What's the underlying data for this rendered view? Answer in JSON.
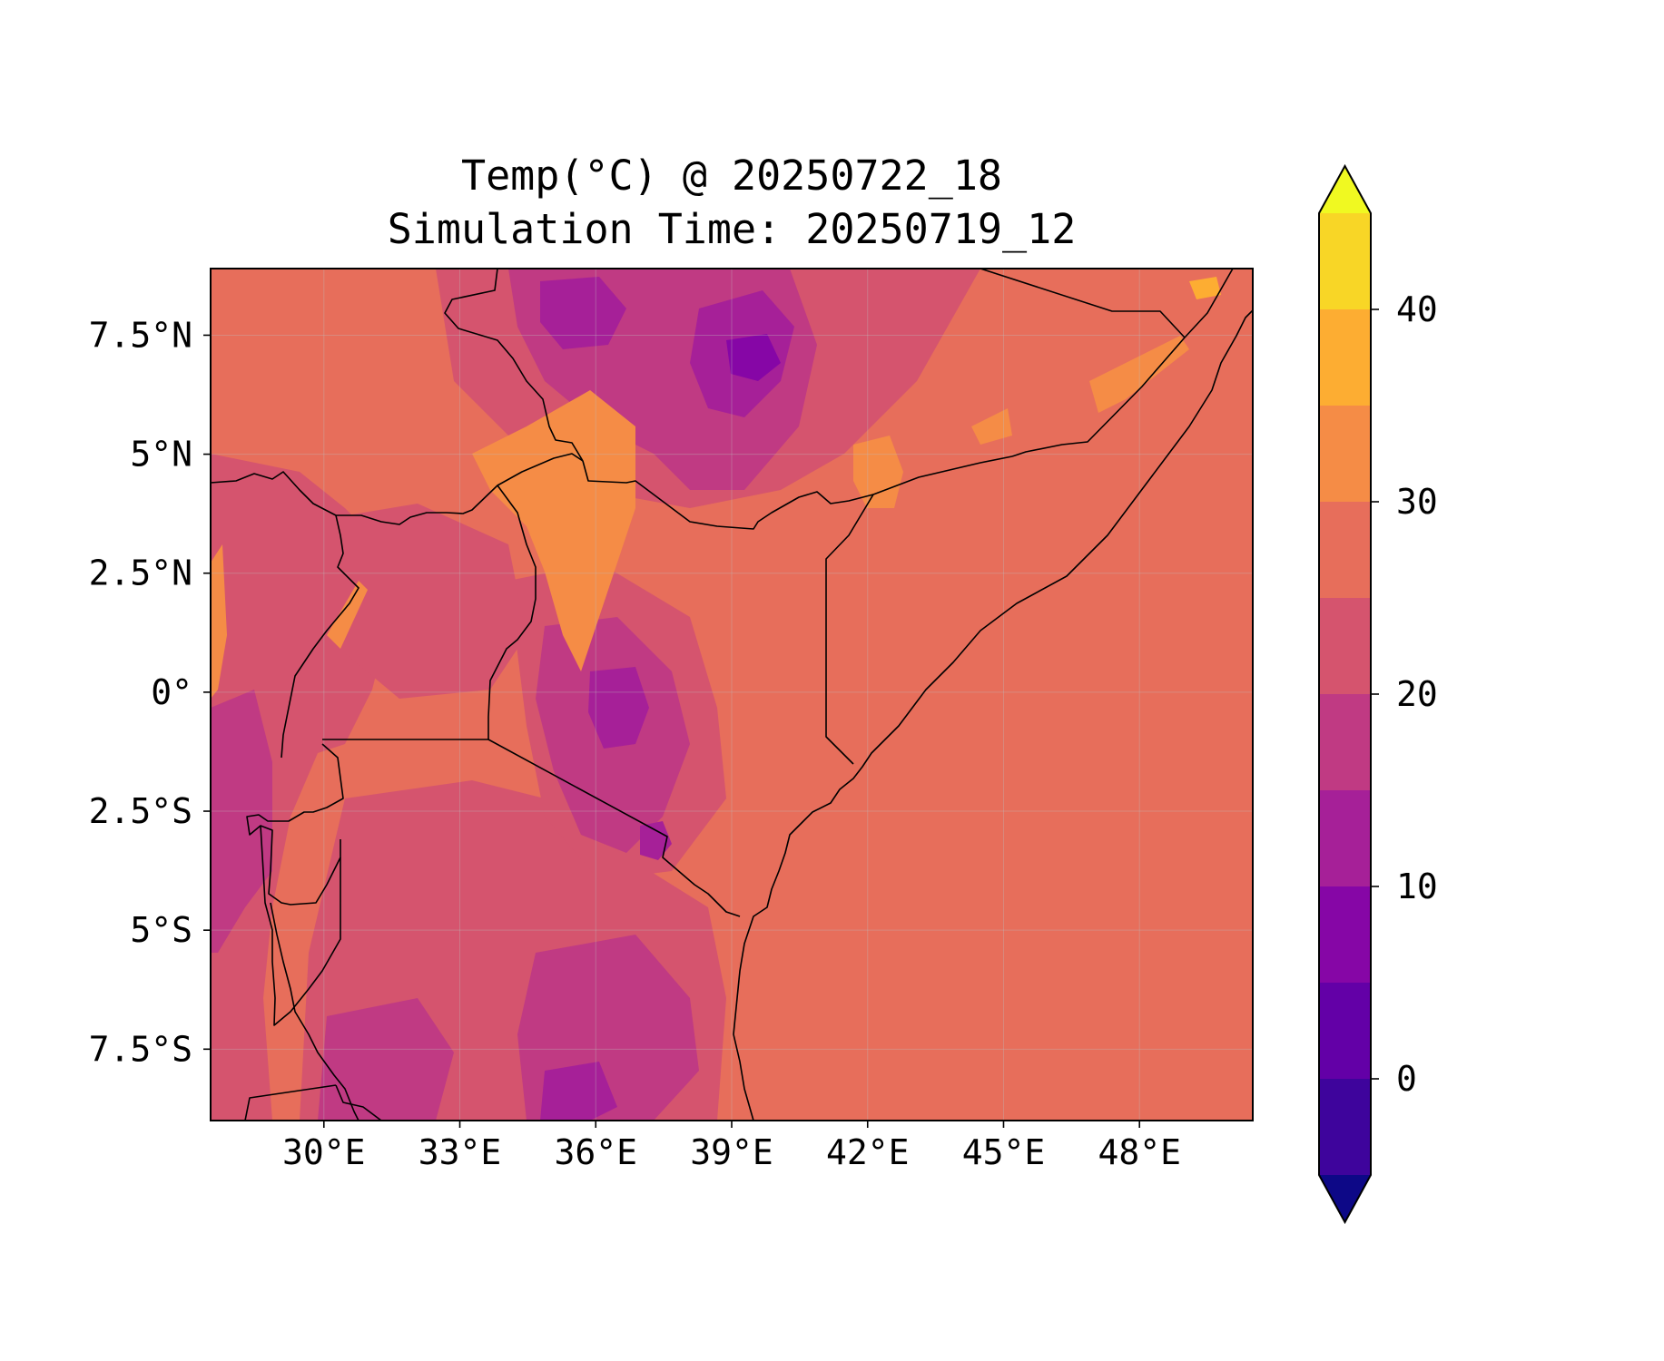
{
  "title": {
    "line1": "Temp(°C) @ 20250722_18",
    "line2": "Simulation Time: 20250719_12"
  },
  "axes": {
    "x_ticks": [
      "30°E",
      "33°E",
      "36°E",
      "39°E",
      "42°E",
      "45°E",
      "48°E"
    ],
    "y_ticks": [
      "7.5°N",
      "5°N",
      "2.5°N",
      "0°",
      "2.5°S",
      "5°S",
      "7.5°S"
    ]
  },
  "colorbar": {
    "tick_labels": [
      "0",
      "10",
      "20",
      "30",
      "40"
    ],
    "levels": [
      -5,
      0,
      5,
      10,
      15,
      20,
      25,
      30,
      35,
      40,
      45
    ],
    "extend": "both",
    "colormap": "plasma",
    "colors": [
      "#0d0887",
      "#3e049c",
      "#6300a7",
      "#8606a6",
      "#a62098",
      "#c03a83",
      "#d5546e",
      "#e76e5b",
      "#f58c46",
      "#fdad32",
      "#f8d626",
      "#f0f921"
    ]
  },
  "chart_data": {
    "type": "heatmap",
    "title": "Temp(°C) @ 20250722_18\nSimulation Time: 20250719_12",
    "variable": "Temp(°C)",
    "valid_time": "20250722_18",
    "simulation_time": "20250719_12",
    "xlim": [
      27.5,
      50.5
    ],
    "ylim": [
      -9.0,
      8.9
    ],
    "x_ticks": [
      30,
      33,
      36,
      39,
      42,
      45,
      48
    ],
    "y_ticks": [
      7.5,
      5,
      2.5,
      0,
      -2.5,
      -5,
      -7.5
    ],
    "grid": true,
    "colorbar_range": [
      -5,
      45
    ],
    "value_ranges": {
      "indian_ocean": [
        25,
        30
      ],
      "northern_kenya_lowlands": [
        25,
        30
      ],
      "lake_turkana_basin": [
        30,
        35
      ],
      "ethiopian_highlands": [
        5,
        15
      ],
      "kenyan_highlands": [
        10,
        20
      ],
      "lake_victoria_uganda": [
        20,
        30
      ],
      "tanzania_interior": [
        15,
        25
      ]
    }
  }
}
